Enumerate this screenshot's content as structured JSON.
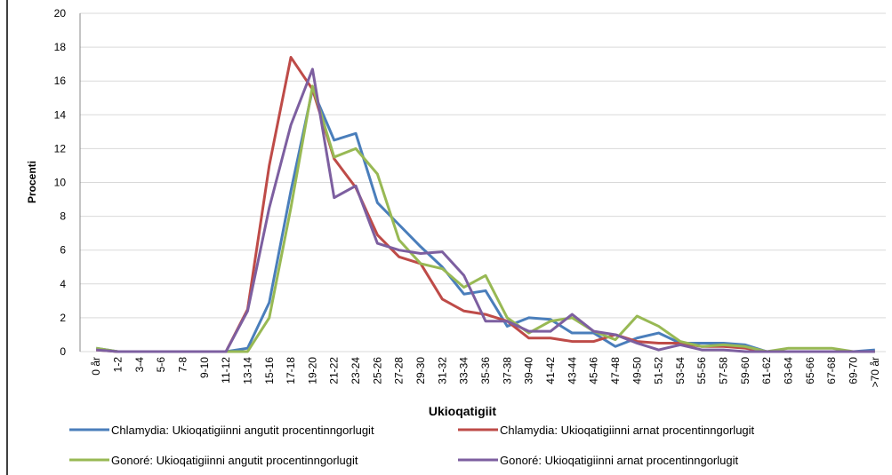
{
  "chart_data": {
    "type": "line",
    "x_label": "Ukioqatigiit",
    "y_label": "Procenti",
    "categories": [
      "0 år",
      "1-2",
      "3-4",
      "5-6",
      "7-8",
      "9-10",
      "11-12",
      "13-14",
      "15-16",
      "17-18",
      "19-20",
      "21-22",
      "23-24",
      "25-26",
      "27-28",
      "29-30",
      "31-32",
      "33-34",
      "35-36",
      "37-38",
      "39-40",
      "41-42",
      "43-44",
      "45-46",
      "47-48",
      "49-50",
      "51-52",
      "53-54",
      "55-56",
      "57-58",
      "59-60",
      "61-62",
      "63-64",
      "65-66",
      "67-68",
      "69-70",
      ">70 år"
    ],
    "series": [
      {
        "name": "Chlamydia: Ukioqatigiinni angutit procentinngorlugit",
        "color": "#4a7ebb",
        "values": [
          0.2,
          0,
          0,
          0,
          0,
          0,
          0,
          0.2,
          2.9,
          9.5,
          15.5,
          12.5,
          12.9,
          8.8,
          7.5,
          6.2,
          5,
          3.4,
          3.6,
          1.5,
          2,
          1.9,
          1.1,
          1.1,
          0.3,
          0.8,
          1.1,
          0.5,
          0.5,
          0.5,
          0.4,
          0,
          0,
          0,
          0,
          0,
          0.1
        ]
      },
      {
        "name": "Chlamydia: Ukioqatigiinni arnat procentinngorlugit",
        "color": "#be4b48",
        "values": [
          0.1,
          0,
          0,
          0,
          0,
          0,
          0,
          2.5,
          11,
          17.4,
          15.5,
          11.4,
          9.7,
          6.9,
          5.6,
          5.2,
          3.1,
          2.4,
          2.2,
          1.8,
          0.8,
          0.8,
          0.6,
          0.6,
          1,
          0.6,
          0.5,
          0.5,
          0.3,
          0.3,
          0.2,
          0,
          0,
          0,
          0,
          0,
          0
        ]
      },
      {
        "name": "Gonoré: Ukioqatigiinni angutit procentinngorlugit",
        "color": "#98b954",
        "values": [
          0.2,
          0,
          0,
          0,
          0,
          0,
          0,
          0,
          2,
          8.5,
          15.7,
          11.5,
          12,
          10.5,
          6.6,
          5.2,
          4.9,
          3.8,
          4.5,
          2,
          1.1,
          1.8,
          2,
          1.2,
          0.7,
          2.1,
          1.5,
          0.6,
          0.3,
          0.4,
          0.3,
          0,
          0.2,
          0.2,
          0.2,
          0,
          0
        ]
      },
      {
        "name": "Gonoré: Ukioqatigiinni arnat procentinngorlugit",
        "color": "#7d5fa0",
        "values": [
          0.1,
          0,
          0,
          0,
          0,
          0,
          0,
          2.4,
          8.5,
          13.4,
          16.7,
          9.1,
          9.8,
          6.4,
          6,
          5.8,
          5.9,
          4.5,
          1.8,
          1.8,
          1.2,
          1.2,
          2.2,
          1.2,
          1,
          0.5,
          0.1,
          0.4,
          0.1,
          0.1,
          0,
          0,
          0,
          0,
          0,
          0,
          0
        ]
      }
    ],
    "ylim": [
      0,
      20
    ],
    "yticks": [
      0,
      2,
      4,
      6,
      8,
      10,
      12,
      14,
      16,
      18,
      20
    ],
    "grid": true,
    "legend": "bottom"
  }
}
